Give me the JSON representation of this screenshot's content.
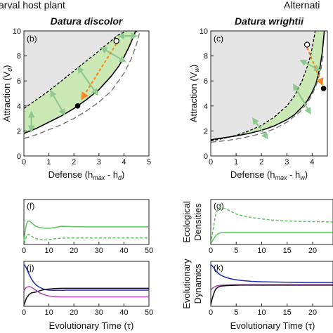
{
  "header": {
    "left": "arval host plant",
    "right": "Alternati"
  },
  "chart_data": [
    {
      "id": "b",
      "type": "line",
      "panel_label": "(b)",
      "title": "Datura discolor",
      "xlabel": "Defense (h",
      "xlabel_sub1": "max",
      "xlabel_mid": " - h",
      "xlabel_sub2": "d",
      "xlabel_end": ")",
      "ylabel": "Attraction (V",
      "ylabel_sub": "d",
      "ylabel_end": ")",
      "xlim": [
        0,
        5
      ],
      "ylim": [
        0,
        10
      ],
      "xticks": [
        "0",
        "1",
        "2",
        "3",
        "4",
        "5"
      ],
      "yticks": [
        "0",
        "2",
        "4",
        "6",
        "8",
        "10"
      ],
      "background_color": "#e5e5e5",
      "band_color": "#cbe9b4",
      "arrow_color": "#f28a1e",
      "double_arrow_color": "#8fc98f",
      "series": [
        {
          "style": "solid",
          "x": [
            0,
            0.5,
            1,
            1.5,
            2,
            2.5,
            3,
            3.5,
            3.8,
            4.0,
            4.2,
            4.35,
            4.45,
            4.52
          ],
          "y": [
            1.8,
            2.2,
            2.7,
            3.2,
            3.8,
            4.5,
            5.3,
            6.4,
            7.2,
            7.9,
            8.7,
            9.4,
            9.9,
            10
          ]
        },
        {
          "style": "dashed",
          "x": [
            0,
            0.5,
            1,
            1.5,
            2,
            2.5,
            3,
            3.3,
            3.6,
            3.8,
            4.0,
            4.1
          ],
          "y": [
            3.8,
            4.5,
            5.2,
            6.0,
            6.8,
            7.6,
            8.4,
            8.9,
            9.4,
            9.7,
            9.9,
            10
          ]
        },
        {
          "style": "longdash",
          "x": [
            0,
            0.5,
            1,
            1.5,
            2,
            2.5,
            3,
            3.5,
            4.0,
            4.3,
            4.5,
            4.62
          ],
          "y": [
            1.4,
            1.7,
            2.1,
            2.5,
            3.0,
            3.6,
            4.3,
            5.2,
            6.6,
            7.8,
            8.9,
            9.8
          ]
        }
      ],
      "open_point": {
        "x": 3.7,
        "y": 9.2
      },
      "filled_point": {
        "x": 2.15,
        "y": 4.0
      },
      "double_arrows": [
        {
          "from": [
            0.3,
            3.4
          ],
          "to": [
            0.3,
            2.1
          ]
        },
        {
          "from": [
            1.1,
            5.1
          ],
          "to": [
            1.6,
            3.4
          ]
        },
        {
          "from": [
            2.2,
            7.0
          ],
          "to": [
            2.9,
            5.0
          ]
        },
        {
          "from": [
            3.15,
            8.6
          ],
          "to": [
            4.0,
            7.6
          ]
        },
        {
          "from": [
            3.85,
            9.6
          ],
          "to": [
            4.45,
            9.6
          ]
        }
      ]
    },
    {
      "id": "c",
      "type": "line",
      "panel_label": "(c)",
      "title": "Datura wrightii",
      "xlabel": "Defense (h",
      "xlabel_sub1": "max",
      "xlabel_mid": " - h",
      "xlabel_sub2": "w",
      "xlabel_end": ")",
      "ylabel": "Attraction (V",
      "ylabel_sub": "w",
      "ylabel_end": ")",
      "xlim": [
        0,
        4.6
      ],
      "ylim": [
        0,
        10
      ],
      "xticks": [
        "0",
        "1",
        "2",
        "3",
        "4"
      ],
      "yticks": [
        "0",
        "2",
        "4",
        "6",
        "8",
        "10"
      ],
      "series": [
        {
          "style": "solid",
          "x": [
            0,
            0.5,
            1,
            1.5,
            2,
            2.5,
            3,
            3.3,
            3.6,
            3.8,
            4.0,
            4.15,
            4.3,
            4.4,
            4.48
          ],
          "y": [
            1.3,
            1.45,
            1.6,
            1.8,
            2.05,
            2.4,
            2.9,
            3.3,
            3.9,
            4.4,
            5.1,
            5.8,
            7.0,
            8.3,
            10
          ]
        },
        {
          "style": "dashed",
          "x": [
            0,
            0.5,
            1,
            1.5,
            2,
            2.5,
            3,
            3.3,
            3.6,
            3.8,
            3.95,
            4.05,
            4.12
          ],
          "y": [
            1.2,
            1.4,
            1.65,
            2.0,
            2.45,
            3.1,
            4.0,
            4.8,
            6.0,
            7.1,
            8.1,
            9.2,
            10
          ]
        },
        {
          "style": "longdash",
          "x": [
            0,
            0.5,
            1,
            1.5,
            2,
            2.5,
            3,
            3.5,
            3.8,
            4.0,
            4.2,
            4.35,
            4.45
          ],
          "y": [
            1.1,
            1.2,
            1.35,
            1.55,
            1.8,
            2.15,
            2.7,
            3.5,
            4.2,
            4.9,
            5.9,
            7.0,
            8.2
          ]
        }
      ],
      "open_point": {
        "x": 3.8,
        "y": 8.9
      },
      "filled_point": {
        "x": 4.45,
        "y": 5.4
      },
      "double_arrows": [
        {
          "from": [
            1.7,
            2.9
          ],
          "to": [
            2.2,
            1.5
          ]
        },
        {
          "from": [
            3.3,
            5.6
          ],
          "to": [
            3.9,
            3.5
          ]
        },
        {
          "from": [
            3.6,
            7.6
          ],
          "to": [
            4.25,
            6.9
          ]
        }
      ]
    },
    {
      "id": "f",
      "type": "line",
      "panel_label": "(f)",
      "xlim": [
        0,
        50
      ],
      "ylim": [
        0,
        4
      ],
      "xticks": [
        "0",
        "10",
        "20",
        "30",
        "40",
        "50"
      ],
      "series": [
        {
          "style": "solid",
          "color": "#5cc25c",
          "x": [
            0,
            0.5,
            1,
            1.5,
            2,
            2.5,
            3,
            4,
            5,
            6,
            8,
            10,
            12,
            15,
            18,
            20,
            25,
            30,
            40,
            50
          ],
          "y": [
            0.3,
            1.2,
            1.8,
            2.05,
            2.1,
            2.05,
            1.95,
            1.75,
            1.6,
            1.52,
            1.45,
            1.43,
            1.5,
            1.62,
            1.6,
            1.58,
            1.57,
            1.57,
            1.57,
            1.57
          ]
        },
        {
          "style": "dashed",
          "color": "#5cc25c",
          "x": [
            0,
            0.5,
            1,
            1.5,
            2,
            3,
            4,
            6,
            8,
            10,
            12,
            15,
            20,
            30,
            40,
            50
          ],
          "y": [
            0.1,
            0.4,
            0.7,
            0.85,
            0.9,
            0.75,
            0.6,
            0.45,
            0.4,
            0.42,
            0.5,
            0.57,
            0.58,
            0.58,
            0.58,
            0.58
          ]
        }
      ]
    },
    {
      "id": "g",
      "type": "line",
      "panel_label": "(g)",
      "ylabel_line1": "Ecological",
      "ylabel_line2": "Densities",
      "xlim": [
        0,
        24
      ],
      "ylim": [
        0,
        9
      ],
      "xticks": [
        "0",
        "5",
        "10",
        "15",
        "20"
      ],
      "series": [
        {
          "style": "dashed",
          "color": "#5cc25c",
          "x": [
            0,
            0.3,
            0.7,
            1,
            1.5,
            2,
            3,
            4,
            5,
            6,
            8,
            10,
            12,
            15,
            18,
            21,
            24
          ],
          "y": [
            0.2,
            2.0,
            4.5,
            6.2,
            7.2,
            7.5,
            7.1,
            6.6,
            6.1,
            5.8,
            5.4,
            5.1,
            4.9,
            4.7,
            4.6,
            4.55,
            4.5
          ]
        },
        {
          "style": "solid",
          "color": "#5cc25c",
          "x": [
            0,
            0.5,
            1,
            1.5,
            2,
            3,
            5,
            8,
            12,
            18,
            24
          ],
          "y": [
            0.2,
            1.0,
            1.8,
            2.2,
            2.35,
            2.4,
            2.4,
            2.4,
            2.4,
            2.4,
            2.4
          ]
        }
      ]
    },
    {
      "id": "j",
      "type": "line",
      "panel_label": "(j)",
      "xlim": [
        0,
        50
      ],
      "ylim": [
        0,
        10
      ],
      "xticks": [
        "0",
        "10",
        "20",
        "30",
        "40",
        "50"
      ],
      "series": [
        {
          "style": "solid",
          "color": "#1f2fb0",
          "x": [
            0,
            0.5,
            1,
            2,
            3,
            4,
            5,
            6,
            8,
            10,
            12,
            15,
            18,
            20,
            25,
            30,
            40,
            50
          ],
          "y": [
            9.3,
            9.0,
            8.5,
            7.2,
            6.1,
            5.3,
            4.7,
            4.3,
            3.8,
            3.6,
            3.55,
            3.55,
            3.6,
            3.6,
            3.6,
            3.6,
            3.6,
            3.6
          ]
        },
        {
          "style": "solid",
          "color": "#111111",
          "x": [
            0,
            0.5,
            1,
            2,
            3,
            4,
            5,
            6,
            8,
            10,
            12,
            15,
            20,
            25,
            30,
            40,
            50
          ],
          "y": [
            0.3,
            1.0,
            1.8,
            2.6,
            3.0,
            3.1,
            3.2,
            3.4,
            3.7,
            3.85,
            3.95,
            4.0,
            4.0,
            4.0,
            4.0,
            4.0,
            4.0
          ]
        },
        {
          "style": "solid",
          "color": "#b24bb2",
          "x": [
            0,
            0.5,
            1,
            2,
            3,
            4,
            5,
            6,
            8,
            10,
            12,
            15,
            20,
            25,
            30,
            40,
            50
          ],
          "y": [
            3.4,
            3.9,
            4.2,
            4.4,
            4.25,
            3.9,
            3.5,
            3.1,
            2.6,
            2.3,
            2.15,
            2.1,
            2.1,
            2.1,
            2.1,
            2.1,
            2.1
          ]
        }
      ]
    },
    {
      "id": "k",
      "type": "line",
      "panel_label": "(k)",
      "ylabel_line1": "Evolutionary",
      "ylabel_line2": "Dynamics",
      "xlim": [
        0,
        24
      ],
      "ylim": [
        0,
        10
      ],
      "xticks": [
        "0",
        "5",
        "10",
        "15",
        "20"
      ],
      "series": [
        {
          "style": "solid",
          "color": "#1f2fb0",
          "x": [
            0,
            0.3,
            0.7,
            1,
            1.5,
            2,
            3,
            4,
            5,
            6,
            8,
            10,
            12,
            15,
            18,
            21,
            24
          ],
          "y": [
            9.3,
            9.0,
            8.4,
            7.9,
            7.3,
            6.9,
            6.4,
            6.1,
            5.9,
            5.75,
            5.55,
            5.45,
            5.4,
            5.35,
            5.3,
            5.3,
            5.3
          ]
        },
        {
          "style": "solid",
          "color": "#b24bb2",
          "x": [
            0,
            0.3,
            0.7,
            1,
            1.5,
            2,
            3,
            4,
            6,
            8,
            12,
            18,
            24
          ],
          "y": [
            3.5,
            4.0,
            4.3,
            4.5,
            4.6,
            4.7,
            4.75,
            4.8,
            4.8,
            4.8,
            4.8,
            4.8,
            4.8
          ]
        },
        {
          "style": "solid",
          "color": "#111111",
          "x": [
            0,
            0.3,
            0.7,
            1,
            1.5,
            2,
            3,
            4,
            6,
            8,
            12,
            18,
            24
          ],
          "y": [
            0.3,
            1.8,
            3.2,
            3.9,
            4.3,
            4.5,
            4.6,
            4.65,
            4.7,
            4.7,
            4.7,
            4.7,
            4.7
          ]
        }
      ]
    }
  ],
  "bottom_xlabel_left": "Evolutionary Time (τ)",
  "bottom_xlabel_right": "Evolutionary Time (τ)"
}
